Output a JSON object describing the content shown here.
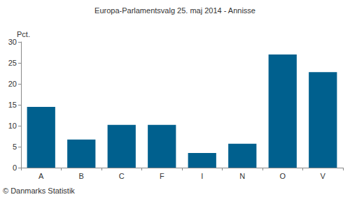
{
  "chart_data": {
    "type": "bar",
    "title": "Europa-Parlamentsvalg 25. maj 2014 - Annisse",
    "y_label": "Pct.",
    "annotations": [
      "© Danmarks Statistik"
    ],
    "categories": [
      "A",
      "B",
      "C",
      "F",
      "I",
      "N",
      "O",
      "V"
    ],
    "values": [
      14.5,
      6.7,
      10.2,
      10.2,
      3.5,
      5.7,
      27.0,
      22.8
    ],
    "color": "#00608e",
    "ylim": [
      0,
      30
    ],
    "yticks": [
      0,
      5,
      10,
      15,
      20,
      25,
      30
    ],
    "grid": false
  }
}
